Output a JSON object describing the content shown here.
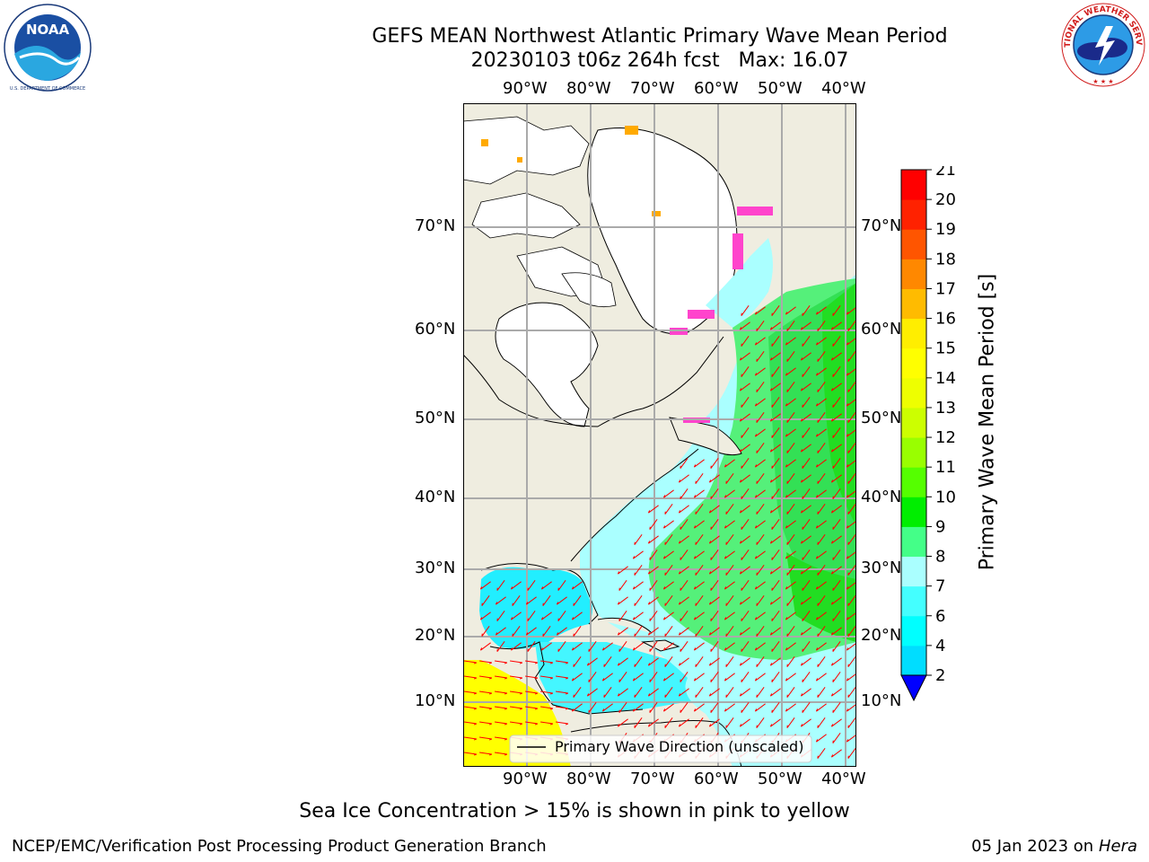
{
  "title": {
    "line1": "GEFS MEAN Northwest Atlantic Primary Wave Mean Period",
    "line2": "20230103 t06z 264h fcst   Max: 16.07"
  },
  "logos": {
    "left": {
      "name": "noaa-logo",
      "text": "NOAA",
      "ring_text": "NATIONAL OCEANIC AND ATMOSPHERIC ADMINISTRATION · U.S. DEPARTMENT OF COMMERCE"
    },
    "right": {
      "name": "nws-logo",
      "ring_text": "NATIONAL WEATHER SERVICE"
    }
  },
  "map": {
    "lon_labels": [
      "90°W",
      "80°W",
      "70°W",
      "60°W",
      "50°W",
      "40°W"
    ],
    "lat_labels": [
      "70°N",
      "60°N",
      "50°N",
      "40°N",
      "30°N",
      "20°N",
      "10°N"
    ],
    "legend_label": "Primary Wave Direction (unscaled)",
    "arrow_color": "#ff0000",
    "land_color": "#efede0",
    "ice_note": "Sea Ice Concentration > 15% is shown in pink to yellow"
  },
  "colorbar": {
    "label": "Primary Wave Mean Period [s]",
    "ticks": [
      "2",
      "4",
      "6",
      "7",
      "8",
      "9",
      "10",
      "11",
      "12",
      "13",
      "14",
      "15",
      "16",
      "17",
      "18",
      "19",
      "20",
      "21"
    ],
    "colors": [
      "#0077ff",
      "#00ddff",
      "#00ffff",
      "#44ffff",
      "#aaffff",
      "#44ff88",
      "#00ee00",
      "#55ff00",
      "#99ff00",
      "#ccff00",
      "#eeff00",
      "#ffff00",
      "#ffee00",
      "#ffbb00",
      "#ff8800",
      "#ff5500",
      "#ff2200",
      "#ff0000"
    ],
    "underflow_color": "#0000ff"
  },
  "footer": {
    "left": "NCEP/EMC/Verification Post Processing Product Generation Branch",
    "right_date": "05 Jan 2023 on ",
    "right_host": "Hera"
  }
}
